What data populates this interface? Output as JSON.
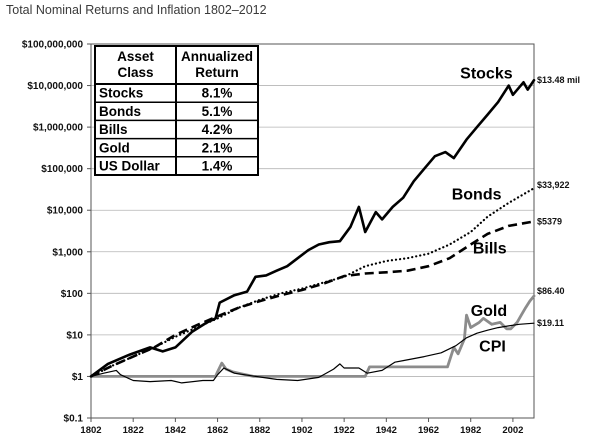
{
  "chart_data": {
    "type": "line",
    "title": "Total Nominal Returns and Inflation 1802–2012",
    "xlabel": "",
    "ylabel": "",
    "y_scale": "log",
    "xlim": [
      1802,
      2012
    ],
    "ylim": [
      0.1,
      100000000
    ],
    "grid": "horizontal",
    "x_ticks": [
      "1802",
      "1822",
      "1842",
      "1862",
      "1882",
      "1902",
      "1922",
      "1942",
      "1962",
      "1982",
      "2002"
    ],
    "y_ticks": [
      {
        "value": 0.1,
        "label": "$0.1"
      },
      {
        "value": 1,
        "label": "$1"
      },
      {
        "value": 10,
        "label": "$10"
      },
      {
        "value": 100,
        "label": "$100"
      },
      {
        "value": 1000,
        "label": "$1,000"
      },
      {
        "value": 10000,
        "label": "$10,000"
      },
      {
        "value": 100000,
        "label": "$100,000"
      },
      {
        "value": 1000000,
        "label": "$1,000,000"
      },
      {
        "value": 10000000,
        "label": "$10,000,000"
      },
      {
        "value": 100000000,
        "label": "$100,000,000"
      }
    ],
    "series": [
      {
        "name": "Stocks",
        "style": "solid",
        "color": "#000000",
        "width": 2.6,
        "end_label": "$13.48 mil",
        "points": [
          [
            1802,
            1
          ],
          [
            1810,
            2
          ],
          [
            1820,
            3.3
          ],
          [
            1830,
            5
          ],
          [
            1836,
            4
          ],
          [
            1842,
            5
          ],
          [
            1850,
            12
          ],
          [
            1857,
            20
          ],
          [
            1861,
            25
          ],
          [
            1863,
            60
          ],
          [
            1870,
            90
          ],
          [
            1876,
            110
          ],
          [
            1880,
            250
          ],
          [
            1885,
            270
          ],
          [
            1890,
            350
          ],
          [
            1895,
            450
          ],
          [
            1900,
            700
          ],
          [
            1905,
            1100
          ],
          [
            1910,
            1500
          ],
          [
            1915,
            1700
          ],
          [
            1920,
            1800
          ],
          [
            1925,
            4000
          ],
          [
            1929,
            12000
          ],
          [
            1932,
            3000
          ],
          [
            1937,
            9000
          ],
          [
            1940,
            6000
          ],
          [
            1945,
            12000
          ],
          [
            1950,
            20000
          ],
          [
            1955,
            50000
          ],
          [
            1960,
            100000
          ],
          [
            1965,
            200000
          ],
          [
            1970,
            250000
          ],
          [
            1974,
            180000
          ],
          [
            1980,
            500000
          ],
          [
            1985,
            1000000
          ],
          [
            1990,
            2000000
          ],
          [
            1995,
            4000000
          ],
          [
            2000,
            10000000
          ],
          [
            2002,
            6000000
          ],
          [
            2007,
            12000000
          ],
          [
            2009,
            8000000
          ],
          [
            2012,
            13480000
          ]
        ]
      },
      {
        "name": "Bonds",
        "style": "dotted",
        "color": "#000000",
        "width": 2.2,
        "end_label": "$33,922",
        "points": [
          [
            1802,
            1
          ],
          [
            1812,
            1.8
          ],
          [
            1822,
            3
          ],
          [
            1832,
            5
          ],
          [
            1842,
            9
          ],
          [
            1852,
            15
          ],
          [
            1862,
            25
          ],
          [
            1872,
            45
          ],
          [
            1882,
            70
          ],
          [
            1892,
            100
          ],
          [
            1902,
            130
          ],
          [
            1912,
            180
          ],
          [
            1922,
            250
          ],
          [
            1932,
            450
          ],
          [
            1942,
            600
          ],
          [
            1952,
            700
          ],
          [
            1962,
            900
          ],
          [
            1972,
            1500
          ],
          [
            1982,
            3000
          ],
          [
            1990,
            7000
          ],
          [
            2000,
            15000
          ],
          [
            2012,
            33922
          ]
        ]
      },
      {
        "name": "Bills",
        "style": "dashed",
        "color": "#000000",
        "width": 2.6,
        "end_label": "$5379",
        "points": [
          [
            1802,
            1
          ],
          [
            1812,
            1.8
          ],
          [
            1822,
            3
          ],
          [
            1832,
            5
          ],
          [
            1842,
            10
          ],
          [
            1852,
            17
          ],
          [
            1862,
            28
          ],
          [
            1872,
            45
          ],
          [
            1882,
            65
          ],
          [
            1892,
            90
          ],
          [
            1902,
            120
          ],
          [
            1912,
            170
          ],
          [
            1922,
            260
          ],
          [
            1932,
            300
          ],
          [
            1942,
            320
          ],
          [
            1952,
            350
          ],
          [
            1962,
            450
          ],
          [
            1972,
            700
          ],
          [
            1982,
            1500
          ],
          [
            1990,
            2700
          ],
          [
            2000,
            4200
          ],
          [
            2012,
            5379
          ]
        ]
      },
      {
        "name": "Gold",
        "style": "solid",
        "color": "#8c8c8c",
        "width": 2.8,
        "end_label": "$86.40",
        "points": [
          [
            1802,
            1
          ],
          [
            1815,
            1
          ],
          [
            1830,
            1
          ],
          [
            1861,
            1
          ],
          [
            1862,
            1.3
          ],
          [
            1864,
            2.1
          ],
          [
            1866,
            1.5
          ],
          [
            1869,
            1.3
          ],
          [
            1872,
            1.2
          ],
          [
            1879,
            1
          ],
          [
            1932,
            1
          ],
          [
            1934,
            1.7
          ],
          [
            1971,
            1.7
          ],
          [
            1974,
            5
          ],
          [
            1976,
            3.5
          ],
          [
            1979,
            8
          ],
          [
            1980,
            30
          ],
          [
            1982,
            15
          ],
          [
            1986,
            20
          ],
          [
            1988,
            25
          ],
          [
            1992,
            18
          ],
          [
            1996,
            20
          ],
          [
            1999,
            14
          ],
          [
            2001,
            14
          ],
          [
            2004,
            20
          ],
          [
            2006,
            30
          ],
          [
            2008,
            45
          ],
          [
            2010,
            65
          ],
          [
            2012,
            86.4
          ]
        ]
      },
      {
        "name": "CPI",
        "style": "solid",
        "color": "#000000",
        "width": 1.2,
        "end_label": "$19.11",
        "points": [
          [
            1802,
            1
          ],
          [
            1808,
            1.2
          ],
          [
            1814,
            1.4
          ],
          [
            1816,
            1.1
          ],
          [
            1822,
            0.8
          ],
          [
            1830,
            0.75
          ],
          [
            1840,
            0.8
          ],
          [
            1845,
            0.7
          ],
          [
            1855,
            0.8
          ],
          [
            1860,
            0.8
          ],
          [
            1862,
            1.1
          ],
          [
            1865,
            1.6
          ],
          [
            1870,
            1.2
          ],
          [
            1880,
            1
          ],
          [
            1890,
            0.85
          ],
          [
            1900,
            0.8
          ],
          [
            1910,
            0.95
          ],
          [
            1917,
            1.5
          ],
          [
            1920,
            2
          ],
          [
            1922,
            1.6
          ],
          [
            1929,
            1.6
          ],
          [
            1933,
            1.2
          ],
          [
            1940,
            1.4
          ],
          [
            1946,
            2.2
          ],
          [
            1950,
            2.4
          ],
          [
            1960,
            3
          ],
          [
            1968,
            3.7
          ],
          [
            1975,
            5.5
          ],
          [
            1980,
            8.5
          ],
          [
            1985,
            11
          ],
          [
            1990,
            13
          ],
          [
            1995,
            15
          ],
          [
            2000,
            16.5
          ],
          [
            2005,
            18
          ],
          [
            2012,
            19.11
          ]
        ]
      }
    ],
    "series_labels": [
      "Stocks",
      "Bonds",
      "Bills",
      "Gold",
      "CPI"
    ],
    "table": {
      "headers": [
        [
          "Asset",
          "Class"
        ],
        [
          "Annualized",
          "Return"
        ]
      ],
      "rows": [
        [
          "Stocks",
          "8.1%"
        ],
        [
          "Bonds",
          "5.1%"
        ],
        [
          "Bills",
          "4.2%"
        ],
        [
          "Gold",
          "2.1%"
        ],
        [
          "US Dollar",
          "1.4%"
        ]
      ]
    }
  }
}
